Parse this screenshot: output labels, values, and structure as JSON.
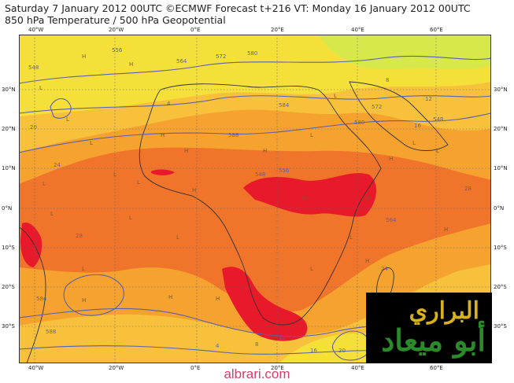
{
  "header": {
    "title": "Saturday 7 January 2012 00UTC ©ECMWF Forecast t+216 VT: Monday 16 January 2012 00UTC",
    "subtitle": "850 hPa Temperature / 500 hPa Geopotential"
  },
  "map": {
    "lon_ticks": [
      "40°W",
      "20°W",
      "0°E",
      "20°E",
      "40°E",
      "60°E"
    ],
    "lat_ticks": [
      "30°N",
      "20°N",
      "10°N",
      "0°N",
      "10°S",
      "20°S",
      "30°S"
    ],
    "contour_labels": [
      "548",
      "556",
      "564",
      "572",
      "580",
      "584",
      "588",
      "4",
      "8",
      "12",
      "16",
      "20",
      "24",
      "28"
    ],
    "pressure_centres": [
      "H",
      "L"
    ],
    "temperature_colors": {
      "cold": "#d6e84a",
      "cool": "#f5e03a",
      "mild": "#f7c13c",
      "warm": "#f5a22f",
      "hot": "#f0742a",
      "very_hot": "#e8192a"
    },
    "contour_color": "#5a5fb0",
    "coast_color": "#333333"
  },
  "logo": {
    "line1": "البراري",
    "line2": "أبو ميعاد",
    "background": "#000000",
    "line1_color": "#d8b21c",
    "line2_color": "#2b8a2a"
  },
  "footer": {
    "website": "albrari.com"
  }
}
